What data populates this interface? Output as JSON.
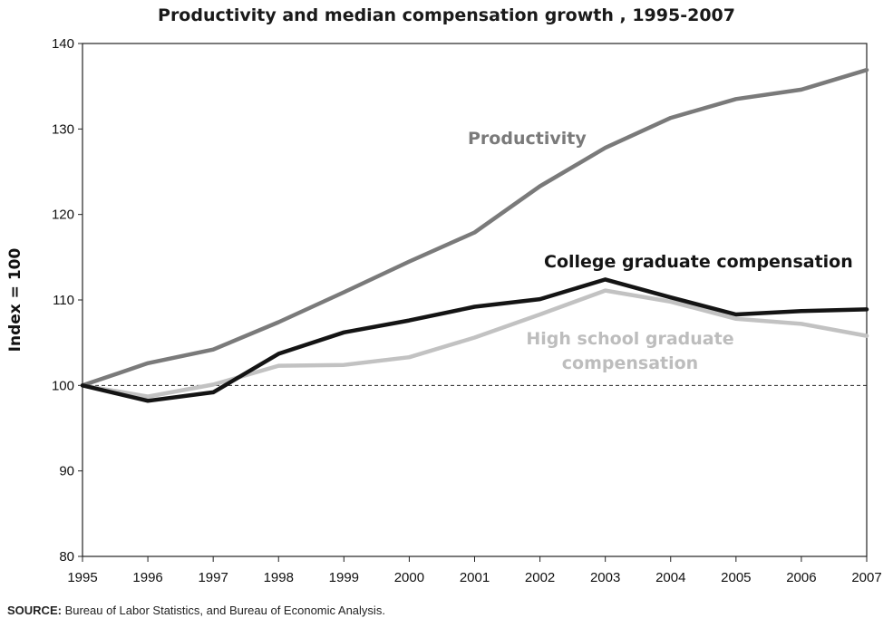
{
  "chart_data": {
    "type": "line",
    "title": "Productivity and median compensation growth , 1995-2007",
    "ylabel": "Index = 100",
    "xlabel": "",
    "x": [
      "1995",
      "1996",
      "1997",
      "1998",
      "1999",
      "2000",
      "2001",
      "2002",
      "2003",
      "2004",
      "2005",
      "2006",
      "2007"
    ],
    "ylim": [
      80,
      140
    ],
    "yticks": [
      80,
      90,
      100,
      110,
      120,
      130,
      140
    ],
    "reference_line": 100,
    "grid": false,
    "legend": "inline labels",
    "series": [
      {
        "name": "Productivity",
        "color": "#7a7a7a",
        "values": [
          100,
          102.6,
          104.2,
          107.4,
          110.9,
          114.5,
          117.9,
          123.3,
          127.8,
          131.3,
          133.5,
          134.6,
          136.9
        ]
      },
      {
        "name": "College graduate compensation",
        "color": "#141414",
        "values": [
          100,
          98.2,
          99.2,
          103.7,
          106.2,
          107.6,
          109.2,
          110.1,
          112.4,
          110.3,
          108.3,
          108.7,
          108.9
        ]
      },
      {
        "name": "High school graduate compensation",
        "color": "#c2c2c2",
        "values": [
          100,
          98.7,
          100.1,
          102.3,
          102.4,
          103.3,
          105.6,
          108.3,
          111.1,
          109.8,
          107.8,
          107.2,
          105.8
        ]
      }
    ],
    "labels": {
      "productivity": "Productivity",
      "college": "College graduate compensation",
      "hs_line1": "High school graduate",
      "hs_line2": "compensation"
    }
  },
  "source": {
    "prefix": "SOURCE:",
    "text": " Bureau of Labor Statistics, and Bureau of Economic Analysis."
  }
}
